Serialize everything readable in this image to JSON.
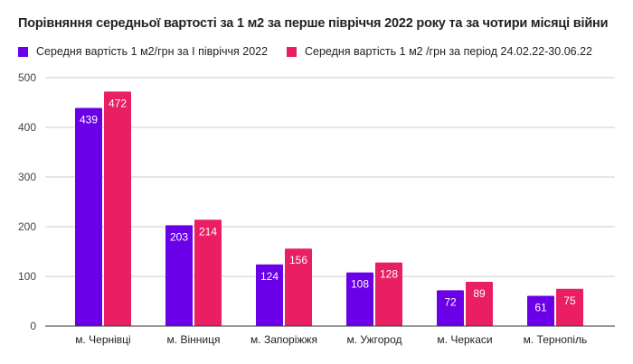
{
  "chart_data": {
    "type": "bar",
    "title": "Порівняння середньої вартості за 1 м2 за перше півріччя 2022 року та за чотири місяці війни",
    "categories": [
      "м. Чернівці",
      "м. Вінниця",
      "м. Запоріжжя",
      "м. Ужгород",
      "м. Черкаси",
      "м. Тернопіль"
    ],
    "series": [
      {
        "name": "Середня вартість 1 м2/грн за І півріччя 2022",
        "color": "#6a00e8",
        "values": [
          439,
          203,
          124,
          108,
          72,
          61
        ]
      },
      {
        "name": "Середня вартість 1 м2 /грн за період 24.02.22-30.06.22",
        "color": "#e91e63",
        "values": [
          472,
          214,
          156,
          128,
          89,
          75
        ]
      }
    ],
    "ylim": [
      0,
      500
    ],
    "yticks": [
      0,
      100,
      200,
      300,
      400,
      500
    ],
    "grid": true,
    "legend": "top-left",
    "data_labels": true
  }
}
